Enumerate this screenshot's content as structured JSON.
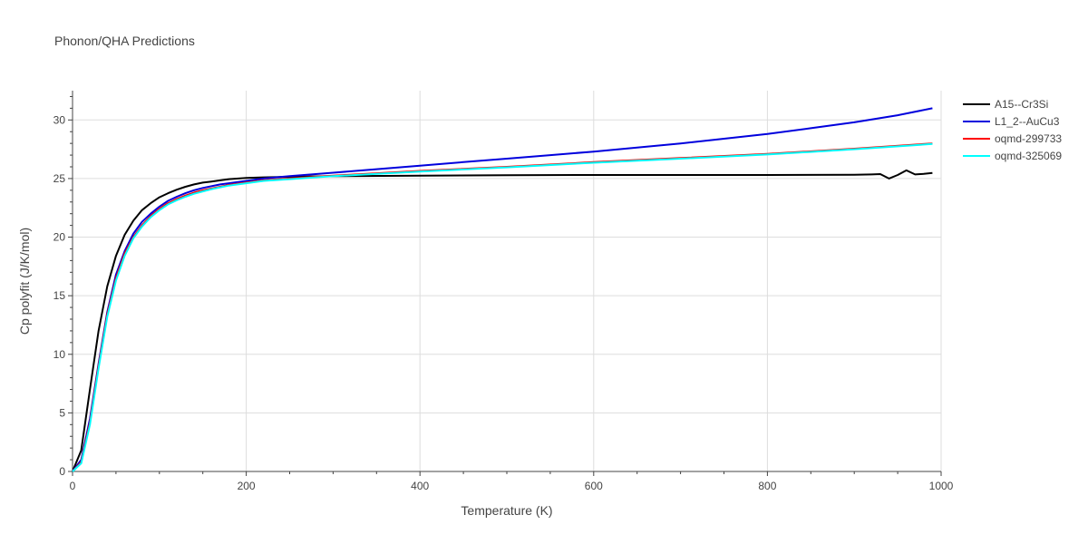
{
  "chart_data": {
    "type": "line",
    "title": "Phonon/QHA Predictions",
    "xlabel": "Temperature (K)",
    "ylabel": "Cp polyfit (J/K/mol)",
    "xlim": [
      0,
      1000
    ],
    "ylim": [
      0,
      32.5
    ],
    "xticks": [
      0,
      200,
      400,
      600,
      800,
      1000
    ],
    "yticks": [
      0,
      5,
      10,
      15,
      20,
      25,
      30
    ],
    "grid": true,
    "legend_position": "top-right",
    "series": [
      {
        "name": "A15--Cr3Si",
        "color": "#000000",
        "x": [
          0,
          10,
          20,
          30,
          40,
          50,
          60,
          70,
          80,
          90,
          100,
          110,
          120,
          130,
          140,
          150,
          160,
          170,
          180,
          200,
          220,
          250,
          300,
          400,
          500,
          600,
          700,
          800,
          900,
          920,
          930,
          940,
          950,
          960,
          970,
          980,
          990
        ],
        "y": [
          0,
          1.8,
          7.0,
          12.0,
          15.8,
          18.4,
          20.2,
          21.4,
          22.3,
          22.9,
          23.4,
          23.75,
          24.05,
          24.3,
          24.5,
          24.65,
          24.75,
          24.85,
          24.95,
          25.05,
          25.1,
          25.15,
          25.2,
          25.25,
          25.28,
          25.3,
          25.3,
          25.3,
          25.32,
          25.35,
          25.38,
          25.0,
          25.3,
          25.7,
          25.35,
          25.4,
          25.48
        ]
      },
      {
        "name": "L1_2--AuCu3",
        "color": "#0000dd",
        "x": [
          0,
          10,
          20,
          30,
          40,
          50,
          60,
          70,
          80,
          90,
          100,
          110,
          120,
          130,
          140,
          150,
          160,
          170,
          180,
          200,
          220,
          250,
          300,
          350,
          400,
          450,
          500,
          550,
          600,
          650,
          700,
          750,
          800,
          850,
          900,
          950,
          990
        ],
        "y": [
          0,
          1.0,
          4.5,
          9.2,
          13.6,
          16.8,
          18.8,
          20.3,
          21.3,
          22.0,
          22.6,
          23.1,
          23.45,
          23.75,
          24.0,
          24.2,
          24.35,
          24.5,
          24.6,
          24.8,
          25.0,
          25.2,
          25.5,
          25.8,
          26.1,
          26.4,
          26.7,
          27.0,
          27.3,
          27.65,
          28.0,
          28.4,
          28.8,
          29.3,
          29.8,
          30.4,
          31.0
        ]
      },
      {
        "name": "oqmd-299733",
        "color": "#ff0000",
        "x": [
          0,
          10,
          20,
          30,
          40,
          50,
          60,
          70,
          80,
          90,
          100,
          110,
          120,
          130,
          140,
          150,
          160,
          170,
          180,
          200,
          220,
          250,
          300,
          350,
          400,
          500,
          600,
          700,
          800,
          900,
          990
        ],
        "y": [
          0,
          0.8,
          4.2,
          9.0,
          13.4,
          16.5,
          18.6,
          20.0,
          21.0,
          21.8,
          22.4,
          22.9,
          23.25,
          23.55,
          23.8,
          24.0,
          24.15,
          24.3,
          24.45,
          24.65,
          24.85,
          25.0,
          25.25,
          25.45,
          25.65,
          26.0,
          26.4,
          26.75,
          27.1,
          27.55,
          28.0
        ]
      },
      {
        "name": "oqmd-325069",
        "color": "#00ffff",
        "x": [
          0,
          10,
          20,
          30,
          40,
          50,
          60,
          70,
          80,
          90,
          100,
          110,
          120,
          130,
          140,
          150,
          160,
          170,
          180,
          200,
          220,
          250,
          300,
          350,
          400,
          500,
          600,
          700,
          800,
          900,
          990
        ],
        "y": [
          0,
          0.7,
          4.0,
          8.8,
          13.2,
          16.3,
          18.4,
          19.9,
          20.9,
          21.7,
          22.3,
          22.8,
          23.15,
          23.45,
          23.7,
          23.9,
          24.1,
          24.25,
          24.4,
          24.6,
          24.8,
          24.95,
          25.2,
          25.4,
          25.6,
          25.95,
          26.35,
          26.7,
          27.05,
          27.5,
          27.95
        ]
      }
    ]
  }
}
